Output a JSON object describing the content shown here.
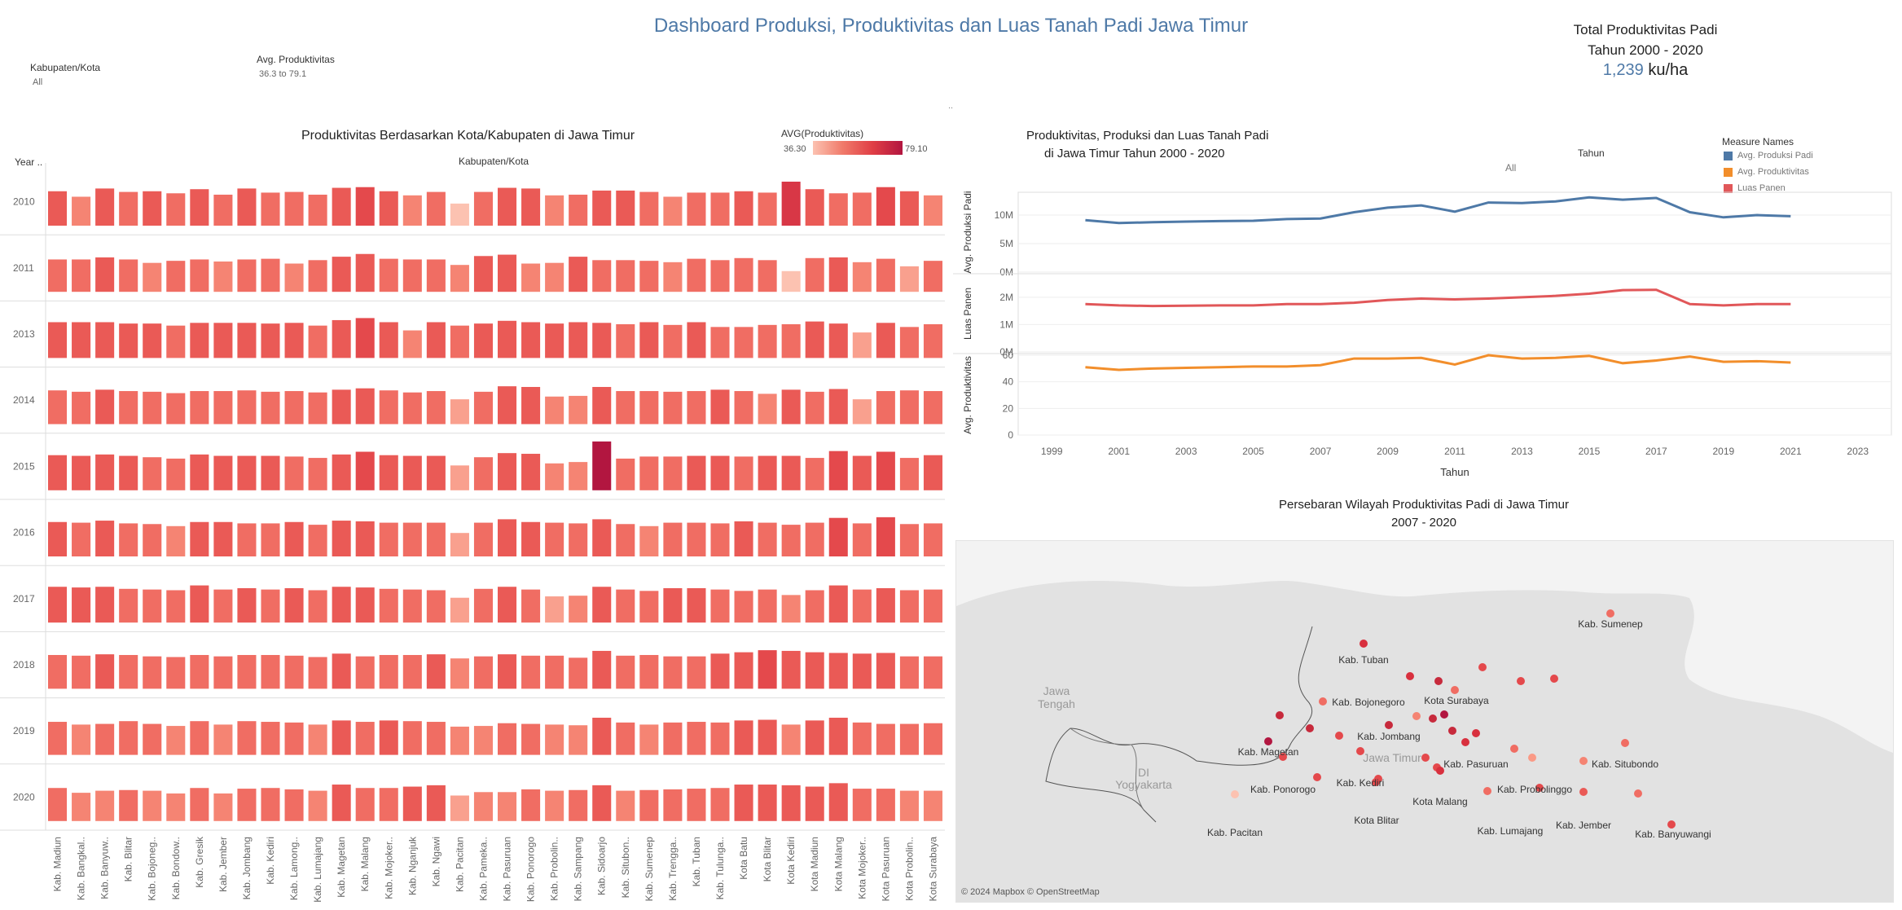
{
  "header": {
    "title": "Dashboard Produksi, Produktivitas dan Luas Tanah Padi Jawa Timur",
    "total_line1": "Total Produktivitas Padi",
    "total_line2": "Tahun 2000 - 2020",
    "total_value": "1,239",
    "total_unit": "ku/ha"
  },
  "filters": {
    "kab_label": "Kabupaten/Kota",
    "kab_value": "All",
    "avg_label": "Avg. Produktivitas",
    "avg_value": "36.3 to 79.1",
    "dots": ".."
  },
  "heatmap": {
    "title": "Produktivitas Berdasarkan Kota/Kabupaten di Jawa Timur",
    "legend_title": "AVG(Produktivitas)",
    "legend_min": "36.30",
    "legend_max": "79.10",
    "col_header": "Kabupaten/Kota",
    "row_header": "Year ..",
    "colors": [
      "#fcc2b1",
      "#f9a08e",
      "#f58473",
      "#f06d63",
      "#ea5a56",
      "#e4494c",
      "#d83746",
      "#b21640"
    ]
  },
  "linechart": {
    "title_line1": "Produktivitas, Produksi dan Luas Tanah Padi",
    "title_line2": "di Jawa Timur Tahun 2000 - 2020",
    "tahun_label": "Tahun",
    "tahun_value": "All",
    "legend_title": "Measure Names",
    "legend_items": [
      {
        "label": "Avg. Produksi Padi",
        "color": "#4e79a7"
      },
      {
        "label": "Avg. Produktivitas",
        "color": "#f28e2b"
      },
      {
        "label": "Luas Panen",
        "color": "#e15759"
      }
    ],
    "panel_labels": [
      "Avg. Produksi Padi",
      "Luas Panen",
      "Avg. Produktivitas"
    ],
    "x_title": "Tahun",
    "x_ticks": [
      "1999",
      "2001",
      "2003",
      "2005",
      "2007",
      "2009",
      "2011",
      "2013",
      "2015",
      "2017",
      "2019",
      "2021",
      "2023"
    ],
    "y_ticks_1": [
      "10M",
      "5M",
      "0M"
    ],
    "y_ticks_2": [
      "2M",
      "1M",
      "0M"
    ],
    "y_ticks_3": [
      "60",
      "40",
      "20",
      "0"
    ]
  },
  "map": {
    "title_line1": "Persebaran Wilayah Produktivitas Padi di Jawa Timur",
    "title_line2": "2007 - 2020",
    "attribution": "© 2024 Mapbox © OpenStreetMap",
    "region_labels": [
      "Jawa",
      "Tengah",
      "DI",
      "Yogyakarta",
      "Jawa Timur"
    ],
    "city_labels": [
      "Kab. Tuban",
      "Kab. Sumenep",
      "Kota Surabaya",
      "Kab. Bojonegoro",
      "Kab. Jombang",
      "Kab. Magetan",
      "Kab. Pasuruan",
      "Kab. Situbondo",
      "Kab. Ponorogo",
      "Kab. Kediri",
      "Kab. Probolinggo",
      "Kota Malang",
      "Kab. Pacitan",
      "Kota Blitar",
      "Kab. Lumajang",
      "Kab. Jember",
      "Kab. Banyuwangi"
    ]
  },
  "chart_data": [
    {
      "type": "heatmap",
      "title": "Produktivitas Berdasarkan Kota/Kabupaten di Jawa Timur",
      "xlabel": "Kabupaten/Kota",
      "ylabel": "Year ..",
      "color_range": [
        36.3,
        79.1
      ],
      "rows": [
        "2010",
        "2011",
        "2013",
        "2014",
        "2015",
        "2016",
        "2017",
        "2018",
        "2019",
        "2020"
      ],
      "categories": [
        "Kab. Madiun",
        "Kab. Bangkal..",
        "Kab. Banyuw..",
        "Kab. Blitar",
        "Kab. Bojoneg..",
        "Kab. Bondow..",
        "Kab. Gresik",
        "Kab. Jember",
        "Kab. Jombang",
        "Kab. Kediri",
        "Kab. Lamong..",
        "Kab. Lumajang",
        "Kab. Magetan",
        "Kab. Malang",
        "Kab. Mojoker..",
        "Kab. Nganjuk",
        "Kab. Ngawi",
        "Kab. Pacitan",
        "Kab. Pameka..",
        "Kab. Pasuruan",
        "Kab. Ponorogo",
        "Kab. Probolin..",
        "Kab. Sampang",
        "Kab. Sidoarjo",
        "Kab. Situbon..",
        "Kab. Sumenep",
        "Kab. Trengga..",
        "Kab. Tuban",
        "Kab. Tulunga..",
        "Kota Batu",
        "Kota Blitar",
        "Kota Kediri",
        "Kota Madiun",
        "Kota Malang",
        "Kota Mojoker..",
        "Kota Pasuruan",
        "Kota Probolin..",
        "Kota Surabaya"
      ],
      "values": [
        [
          58,
          50,
          62,
          57,
          58,
          55,
          61,
          53,
          62,
          56,
          57,
          53,
          63,
          64,
          58,
          52,
          57,
          40,
          57,
          63,
          62,
          52,
          53,
          59,
          59,
          57,
          50,
          56,
          56,
          58,
          56,
          72,
          61,
          55,
          56,
          64,
          58,
          52
        ],
        [
          55,
          55,
          58,
          55,
          50,
          53,
          55,
          52,
          55,
          56,
          49,
          54,
          59,
          63,
          56,
          55,
          55,
          47,
          60,
          62,
          49,
          50,
          59,
          54,
          54,
          53,
          51,
          56,
          54,
          57,
          54,
          38,
          57,
          58,
          51,
          56,
          45,
          53
        ],
        [
          60,
          60,
          60,
          58,
          58,
          55,
          59,
          59,
          59,
          58,
          59,
          55,
          63,
          66,
          60,
          48,
          60,
          55,
          58,
          62,
          60,
          58,
          60,
          59,
          57,
          60,
          56,
          60,
          53,
          53,
          56,
          57,
          61,
          58,
          45,
          59,
          53,
          57
        ],
        [
          57,
          55,
          58,
          56,
          55,
          53,
          56,
          56,
          57,
          55,
          56,
          54,
          58,
          60,
          57,
          54,
          56,
          44,
          55,
          63,
          62,
          48,
          49,
          62,
          56,
          56,
          55,
          56,
          58,
          56,
          52,
          58,
          55,
          59,
          44,
          56,
          57,
          56
        ],
        [
          59,
          58,
          60,
          58,
          56,
          54,
          60,
          58,
          58,
          58,
          57,
          55,
          60,
          64,
          59,
          58,
          58,
          44,
          56,
          62,
          61,
          47,
          49,
          79,
          54,
          57,
          57,
          58,
          58,
          57,
          58,
          58,
          55,
          65,
          58,
          64,
          55,
          59
        ],
        [
          58,
          57,
          60,
          56,
          55,
          52,
          58,
          58,
          56,
          56,
          58,
          54,
          60,
          59,
          57,
          57,
          57,
          42,
          57,
          62,
          58,
          57,
          56,
          62,
          55,
          52,
          57,
          57,
          56,
          59,
          57,
          54,
          57,
          64,
          56,
          65,
          55,
          56
        ],
        [
          60,
          59,
          60,
          57,
          56,
          55,
          62,
          56,
          58,
          56,
          58,
          55,
          60,
          59,
          57,
          56,
          55,
          44,
          57,
          60,
          56,
          46,
          47,
          60,
          56,
          54,
          58,
          58,
          56,
          54,
          56,
          48,
          55,
          62,
          56,
          58,
          55,
          56
        ],
        [
          57,
          56,
          58,
          57,
          55,
          54,
          57,
          55,
          57,
          57,
          56,
          54,
          59,
          55,
          57,
          57,
          58,
          52,
          55,
          58,
          56,
          56,
          53,
          63,
          56,
          57,
          55,
          55,
          59,
          61,
          64,
          63,
          61,
          60,
          59,
          60,
          55,
          55
        ],
        [
          56,
          52,
          53,
          57,
          53,
          50,
          57,
          52,
          57,
          56,
          55,
          52,
          58,
          56,
          58,
          57,
          56,
          49,
          50,
          54,
          53,
          52,
          51,
          62,
          55,
          52,
          55,
          56,
          55,
          58,
          59,
          52,
          58,
          62,
          55,
          53,
          53,
          54
        ],
        [
          56,
          49,
          52,
          53,
          52,
          48,
          56,
          48,
          55,
          56,
          54,
          52,
          61,
          56,
          56,
          58,
          60,
          45,
          50,
          50,
          54,
          52,
          53,
          60,
          52,
          53,
          54,
          55,
          56,
          61,
          61,
          60,
          58,
          63,
          55,
          55,
          52,
          52
        ]
      ]
    },
    {
      "type": "line",
      "title": "Produktivitas, Produksi dan Luas Tanah Padi di Jawa Timur Tahun 2000 - 2020",
      "xlabel": "Tahun",
      "x": [
        2000,
        2001,
        2002,
        2003,
        2004,
        2005,
        2006,
        2007,
        2008,
        2009,
        2010,
        2011,
        2012,
        2013,
        2014,
        2015,
        2016,
        2017,
        2018,
        2019,
        2020,
        2021
      ],
      "xlim": [
        1998,
        2024
      ],
      "series": [
        {
          "name": "Avg. Produksi Padi",
          "color": "#4e79a7",
          "ylim": [
            0,
            14000000
          ],
          "values": [
            9100000,
            8600000,
            8750000,
            8850000,
            8950000,
            9000000,
            9300000,
            9400000,
            10500000,
            11300000,
            11700000,
            10600000,
            12200000,
            12100000,
            12400000,
            13100000,
            12700000,
            13000000,
            10500000,
            9600000,
            10000000,
            9800000
          ]
        },
        {
          "name": "Luas Panen",
          "color": "#e15759",
          "ylim": [
            0,
            2800000
          ],
          "values": [
            1750000,
            1700000,
            1680000,
            1690000,
            1700000,
            1700000,
            1750000,
            1750000,
            1800000,
            1900000,
            1950000,
            1920000,
            1950000,
            2000000,
            2050000,
            2130000,
            2260000,
            2270000,
            1750000,
            1700000,
            1750000,
            1750000
          ]
        },
        {
          "name": "Avg. Produktivitas",
          "color": "#f28e2b",
          "ylim": [
            0,
            60
          ],
          "values": [
            51,
            49,
            50,
            50.5,
            51,
            51.5,
            51.5,
            52.5,
            57.5,
            57.5,
            58,
            53,
            60,
            57.5,
            58,
            59.5,
            54,
            56,
            59,
            55,
            55.5,
            54.5
          ]
        }
      ]
    }
  ]
}
